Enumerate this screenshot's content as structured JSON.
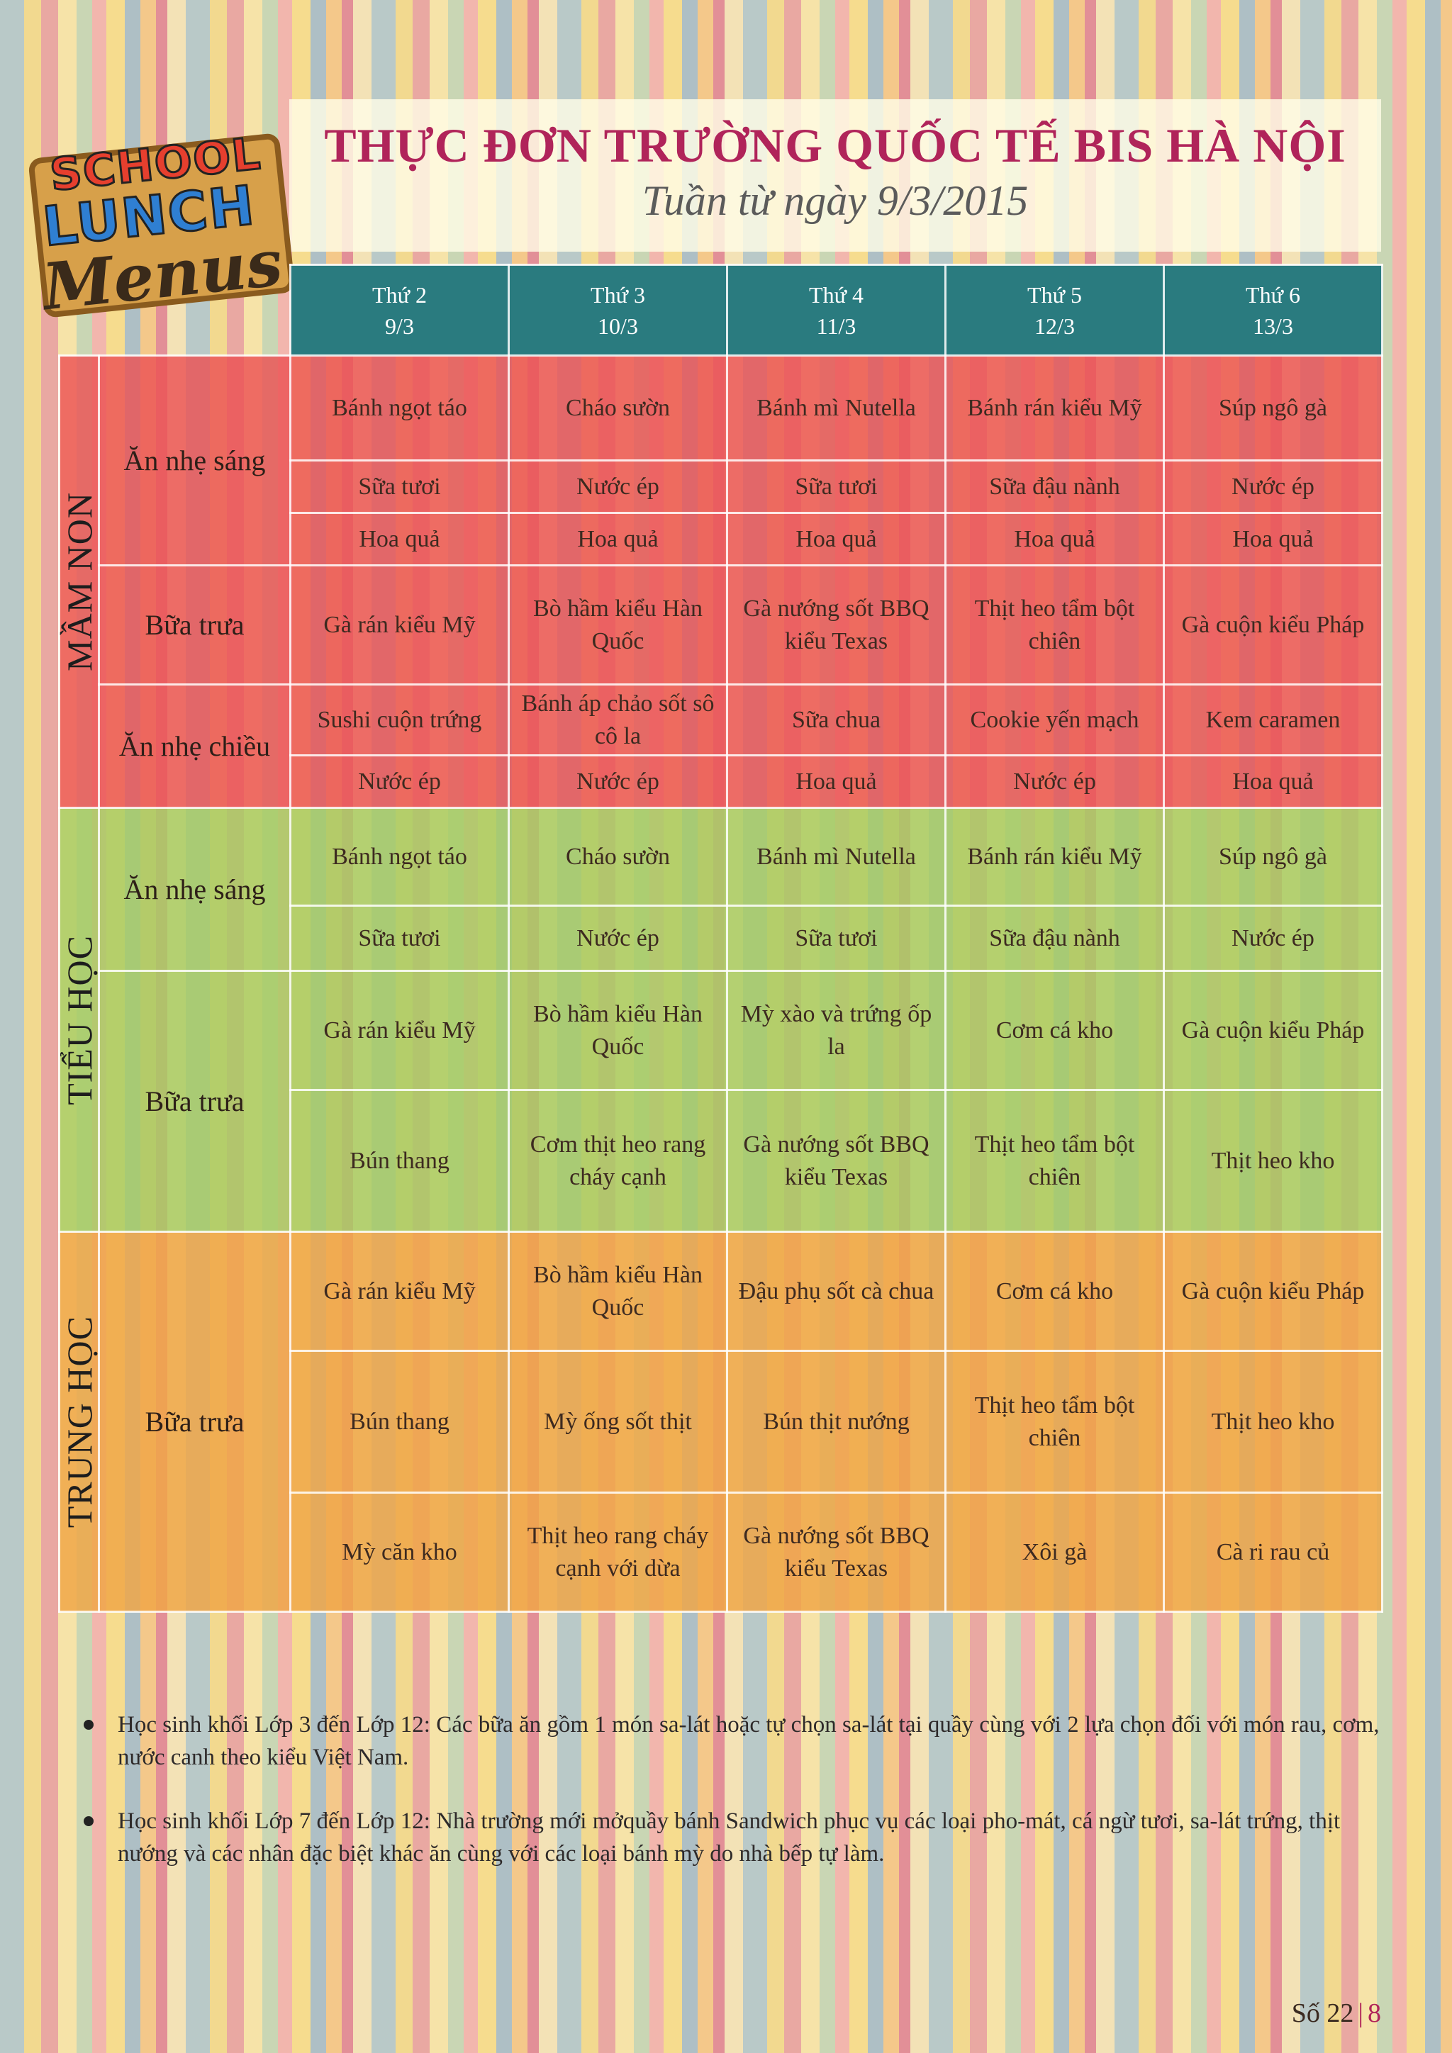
{
  "header": {
    "title": "THỰC ĐƠN TRƯỜNG QUỐC TẾ BIS HÀ NỘI",
    "subtitle": "Tuần từ ngày 9/3/2015",
    "logo_lines": [
      "SCHOOL",
      "LUNCH",
      "Menus"
    ]
  },
  "days": [
    {
      "name": "Thứ 2",
      "date": "9/3"
    },
    {
      "name": "Thứ 3",
      "date": "10/3"
    },
    {
      "name": "Thứ 4",
      "date": "11/3"
    },
    {
      "name": "Thứ 5",
      "date": "12/3"
    },
    {
      "name": "Thứ 6",
      "date": "13/3"
    }
  ],
  "levels": {
    "mam_non": "MẦM NON",
    "tieu_hoc": "TIỂU HỌC",
    "trung_hoc": "TRUNG HỌC"
  },
  "meals": {
    "an_nhe_sang": "Ăn nhẹ sáng",
    "bua_trua": "Bữa trưa",
    "an_nhe_chieu": "Ăn nhẹ chiều"
  },
  "mam_non": {
    "sang": [
      [
        "Bánh ngọt táo",
        "Cháo sườn",
        "Bánh mì Nutella",
        "Bánh rán kiểu Mỹ",
        "Súp ngô gà"
      ],
      [
        "Sữa tươi",
        "Nước ép",
        "Sữa tươi",
        "Sữa đậu nành",
        "Nước ép"
      ],
      [
        "Hoa quả",
        "Hoa quả",
        "Hoa quả",
        "Hoa quả",
        "Hoa quả"
      ]
    ],
    "trua": [
      [
        "Gà rán kiểu Mỹ",
        "Bò hầm kiểu Hàn Quốc",
        "Gà nướng sốt BBQ kiểu Texas",
        "Thịt heo tẩm bột chiên",
        "Gà cuộn kiểu Pháp"
      ]
    ],
    "chieu": [
      [
        "Sushi cuộn trứng",
        "Bánh áp chảo sốt sô cô la",
        "Sữa chua",
        "Cookie yến mạch",
        "Kem caramen"
      ],
      [
        "Nước ép",
        "Nước ép",
        "Hoa quả",
        "Nước ép",
        "Hoa quả"
      ]
    ]
  },
  "tieu_hoc": {
    "sang": [
      [
        "Bánh ngọt táo",
        "Cháo sườn",
        "Bánh mì Nutella",
        "Bánh rán kiểu Mỹ",
        "Súp ngô gà"
      ],
      [
        "Sữa tươi",
        "Nước ép",
        "Sữa tươi",
        "Sữa đậu nành",
        "Nước ép"
      ]
    ],
    "trua": [
      [
        "Gà rán kiểu Mỹ",
        "Bò hầm kiểu Hàn Quốc",
        "Mỳ xào và trứng ốp la",
        "Cơm cá kho",
        "Gà cuộn kiểu Pháp"
      ],
      [
        "Bún thang",
        "Cơm thịt heo rang cháy cạnh",
        "Gà nướng sốt BBQ kiểu Texas",
        "Thịt heo tẩm bột chiên",
        "Thịt heo kho"
      ]
    ]
  },
  "trung_hoc": {
    "trua": [
      [
        "Gà rán kiểu Mỹ",
        "Bò hầm kiểu Hàn Quốc",
        "Đậu phụ sốt cà chua",
        "Cơm cá kho",
        "Gà cuộn kiểu Pháp"
      ],
      [
        "Bún thang",
        "Mỳ ống sốt thịt",
        "Bún thịt nướng",
        "Thịt heo tẩm bột chiên",
        "Thịt heo kho"
      ],
      [
        "Mỳ căn kho",
        "Thịt heo rang cháy cạnh với dừa",
        "Gà nướng sốt BBQ kiểu Texas",
        "Xôi gà",
        "Cà ri rau củ"
      ]
    ]
  },
  "notes": [
    "Học sinh khối Lớp 3 đến Lớp 12: Các bữa ăn  gồm 1 món sa-lát hoặc tự chọn sa-lát tại quầy cùng với 2 lựa chọn đối với món rau, cơm, nước canh theo kiểu Việt Nam.",
    "Học sinh khối Lớp 7 đến Lớp 12: Nhà trường  mới mởquầy  bánh Sandwich phục vụ  các loại pho-mát, cá ngừ tươi, sa-lát trứng, thịt nướng và các nhân đặc biệt khác ăn cùng với các loại bánh mỳ  do nhà bếp tự làm."
  ],
  "footer": {
    "issue": "Số 22",
    "separator": "|",
    "page": "8"
  },
  "colors": {
    "title": "#b0245a",
    "header_row": "#2a7b7f",
    "mam_non": "#ec5254",
    "tieu_hoc": "#a6cc62",
    "trung_hoc": "#f0a646"
  }
}
